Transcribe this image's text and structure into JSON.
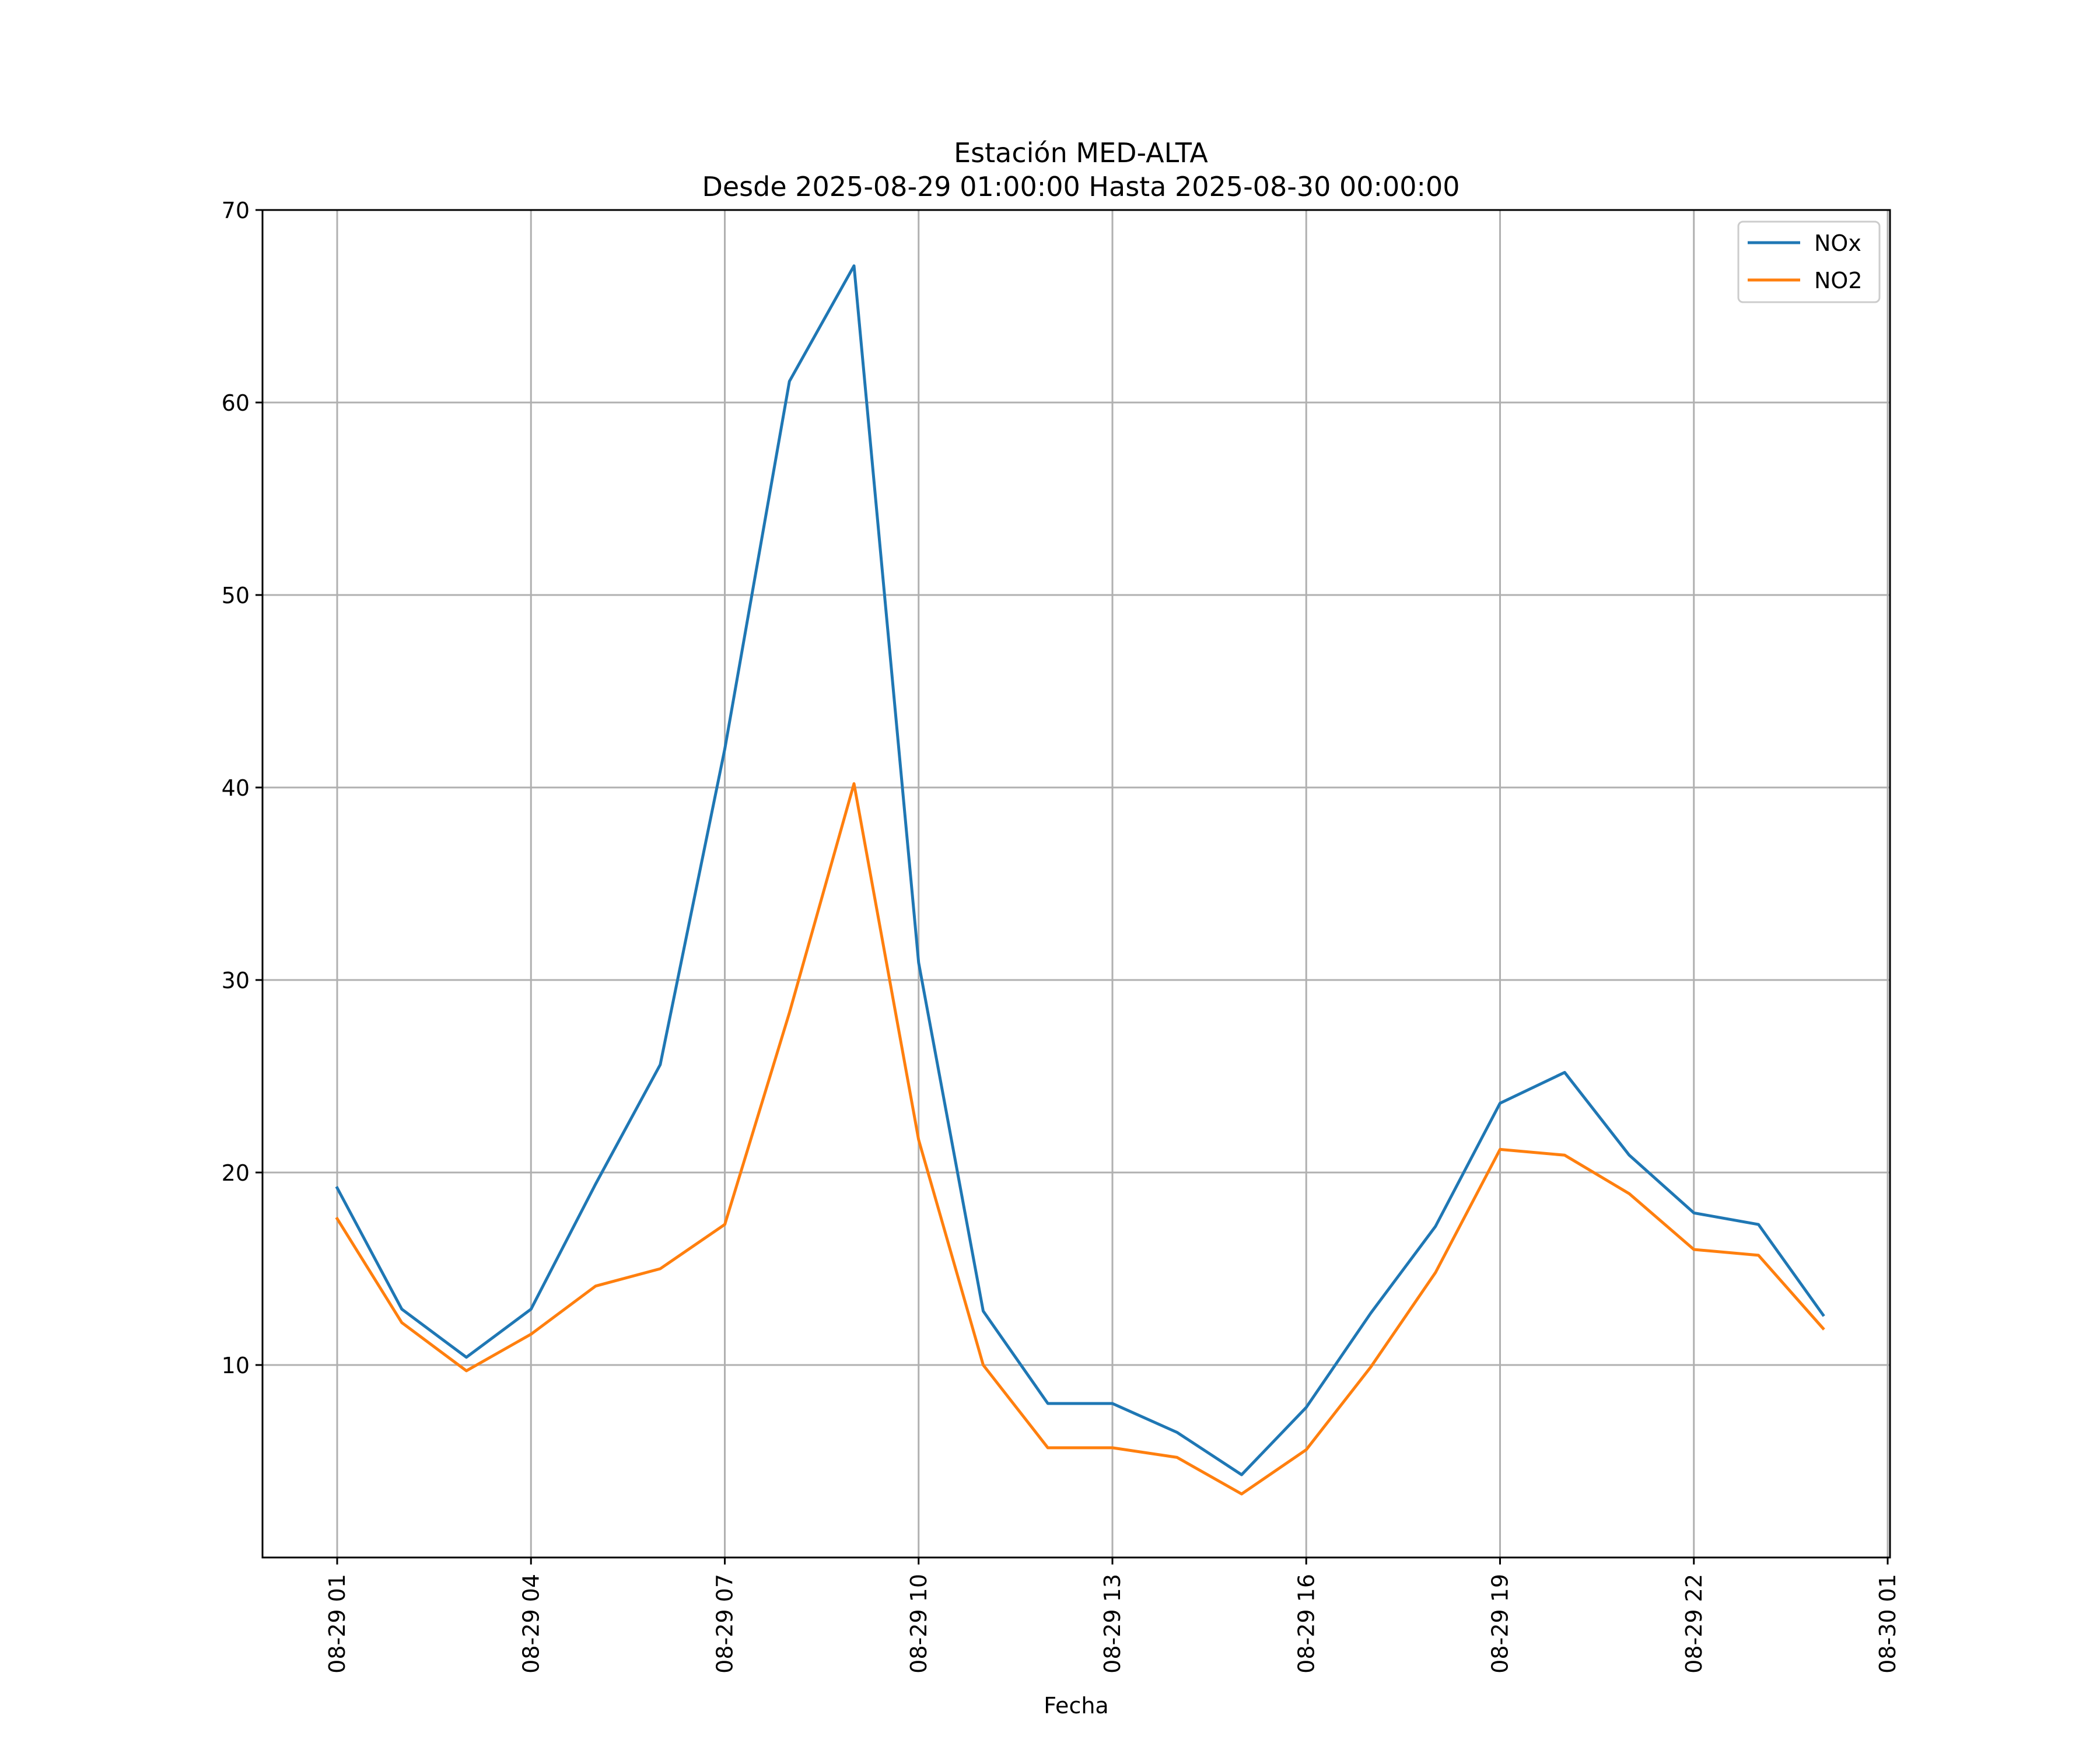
{
  "chart_data": {
    "type": "line",
    "title": "Estación MED-ALTA",
    "subtitle": "Desde 2025-08-29 01:00:00 Hasta 2025-08-30 00:00:00",
    "xlabel": "Fecha",
    "ylabel": "",
    "x": [
      "08-29 01",
      "08-29 02",
      "08-29 03",
      "08-29 04",
      "08-29 05",
      "08-29 06",
      "08-29 07",
      "08-29 08",
      "08-29 09",
      "08-29 10",
      "08-29 11",
      "08-29 12",
      "08-29 13",
      "08-29 14",
      "08-29 15",
      "08-29 16",
      "08-29 17",
      "08-29 18",
      "08-29 19",
      "08-29 20",
      "08-29 21",
      "08-29 22",
      "08-29 23",
      "08-30 00"
    ],
    "x_tick_labels": [
      "08-29 01",
      "08-29 04",
      "08-29 07",
      "08-29 10",
      "08-29 13",
      "08-29 16",
      "08-29 19",
      "08-29 22",
      "08-30 01"
    ],
    "y_ticks": [
      10,
      20,
      30,
      40,
      50,
      60,
      70
    ],
    "ylim": [
      0,
      70
    ],
    "grid": true,
    "legend_position": "top-right",
    "series": [
      {
        "name": "NOx",
        "color": "#1f77b4",
        "values": [
          19.2,
          12.9,
          10.4,
          12.9,
          19.4,
          25.6,
          42.0,
          61.1,
          67.1,
          30.9,
          12.8,
          8.0,
          8.0,
          6.5,
          4.3,
          7.8,
          12.7,
          17.2,
          23.6,
          25.2,
          20.9,
          17.9,
          17.3,
          12.6
        ]
      },
      {
        "name": "NO2",
        "color": "#ff7f0e",
        "values": [
          17.6,
          12.2,
          9.7,
          11.6,
          14.1,
          15.0,
          17.3,
          28.3,
          40.2,
          21.7,
          10.0,
          5.7,
          5.7,
          5.2,
          3.3,
          5.6,
          9.9,
          14.8,
          21.2,
          20.9,
          18.9,
          16.0,
          15.7,
          11.9
        ]
      }
    ]
  }
}
